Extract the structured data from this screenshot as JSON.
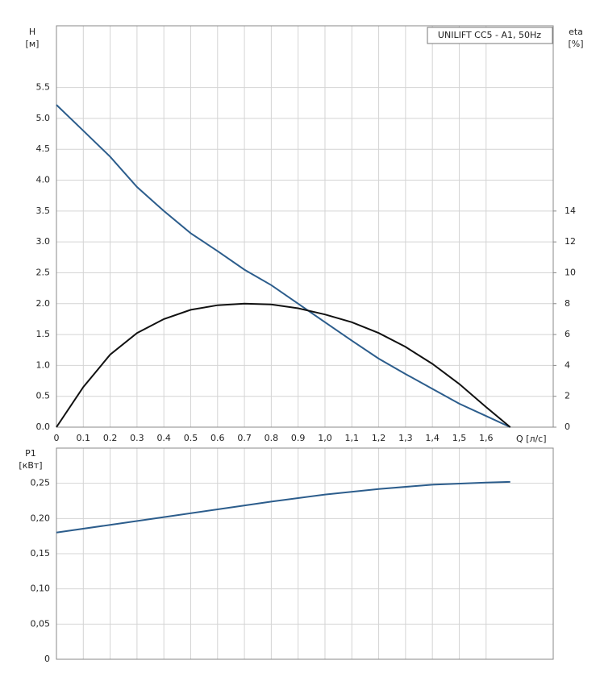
{
  "chart_data": [
    {
      "type": "line",
      "title": "UNILIFT CC5 - A1, 50Hz",
      "ylabel": "H",
      "yunit": "[м]",
      "y2label": "eta",
      "y2unit": "[%]",
      "xlabel": "Q [л/с]",
      "x": [
        0,
        0.1,
        0.2,
        0.3,
        0.4,
        0.5,
        0.6,
        0.7,
        0.8,
        0.9,
        1.0,
        1.1,
        1.2,
        1.3,
        1.4,
        1.5,
        1.6,
        1.69
      ],
      "series": [
        {
          "color": "#2c5d8c",
          "values": [
            5.22,
            4.8,
            4.38,
            3.89,
            3.5,
            3.14,
            2.85,
            2.55,
            2.3,
            2.0,
            1.7,
            1.4,
            1.11,
            0.86,
            0.62,
            0.38,
            0.18,
            0
          ]
        },
        {
          "color": "#111111",
          "axis": "y2",
          "values": [
            0,
            2.6,
            4.7,
            6.1,
            7.0,
            7.6,
            7.9,
            8.0,
            7.95,
            7.7,
            7.3,
            6.8,
            6.1,
            5.2,
            4.1,
            2.8,
            1.3,
            0
          ]
        }
      ],
      "xlim": [
        0,
        1.85
      ],
      "xticks": [
        0,
        0.1,
        0.2,
        0.3,
        0.4,
        0.5,
        0.6,
        0.7,
        0.8,
        0.9,
        {
          "value": 1.0,
          "label": "1,0"
        },
        {
          "value": 1.1,
          "label": "1,1"
        },
        {
          "value": 1.2,
          "label": "1,2"
        },
        {
          "value": 1.3,
          "label": "1,3"
        },
        {
          "value": 1.4,
          "label": "1,4"
        },
        {
          "value": 1.5,
          "label": "1,5"
        },
        {
          "value": 1.6,
          "label": "1,6"
        }
      ],
      "ylim": [
        0,
        6.5
      ],
      "yticks": [
        {
          "value": 0,
          "label": "0.0"
        },
        0.5,
        {
          "value": 1,
          "label": "1.0"
        },
        1.5,
        {
          "value": 2,
          "label": "2.0"
        },
        2.5,
        {
          "value": 3,
          "label": "3.0"
        },
        3.5,
        {
          "value": 4,
          "label": "4.0"
        },
        4.5,
        {
          "value": 5,
          "label": "5.0"
        },
        5.5
      ],
      "y2lim": [
        0,
        26
      ],
      "y2ticks": [
        0,
        2,
        4,
        6,
        8,
        10,
        12,
        14
      ],
      "grid": true
    },
    {
      "type": "line",
      "ylabel": "P1",
      "yunit": "[кВт]",
      "x": [
        0,
        0.2,
        0.4,
        0.6,
        0.8,
        1.0,
        1.2,
        1.4,
        1.6,
        1.69
      ],
      "series": [
        {
          "color": "#2c5d8c",
          "values": [
            0.18,
            0.191,
            0.202,
            0.213,
            0.224,
            0.234,
            0.242,
            0.248,
            0.251,
            0.252
          ]
        }
      ],
      "xlim": [
        0,
        1.85
      ],
      "ylim": [
        0,
        0.3
      ],
      "yticks": [
        0,
        {
          "value": 0.05,
          "label": "0,05"
        },
        {
          "value": 0.1,
          "label": "0,10"
        },
        {
          "value": 0.15,
          "label": "0,15"
        },
        {
          "value": 0.2,
          "label": "0,20"
        },
        {
          "value": 0.25,
          "label": "0,25"
        }
      ],
      "grid": true
    }
  ]
}
